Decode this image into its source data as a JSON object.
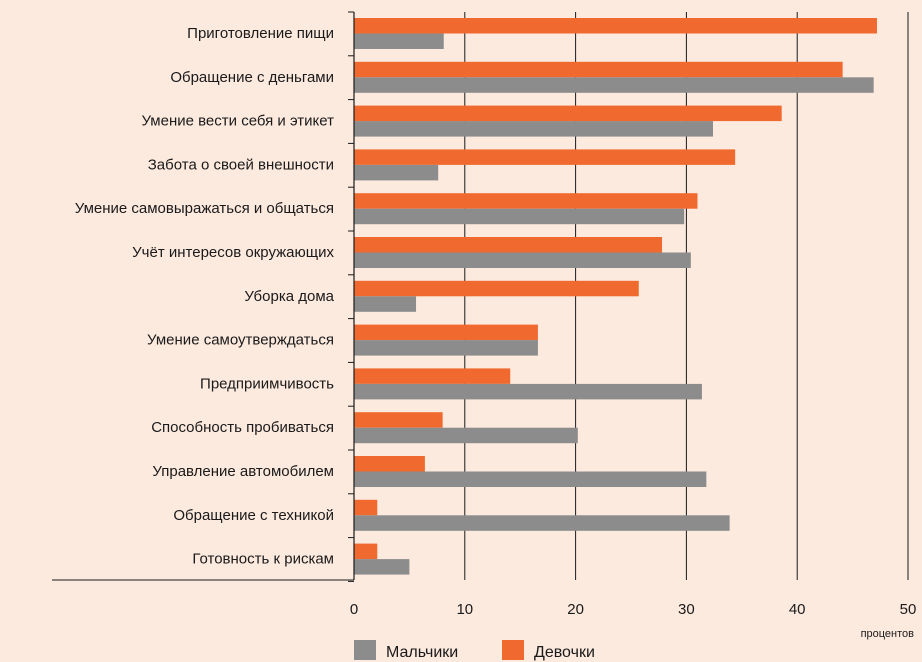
{
  "chart_data": {
    "type": "bar",
    "orientation": "horizontal",
    "categories": [
      "Приготовление пищи",
      "Обращение с деньгами",
      "Умение вести себя и этикет",
      "Забота о своей внешности",
      "Умение самовыражаться и общаться",
      "Учёт интересов окружающих",
      "Уборка дома",
      "Умение самоутверждаться",
      "Предприимчивость",
      "Способность пробиваться",
      "Управление автомобилем",
      "Обращение с техникой",
      "Готовность к рискам"
    ],
    "series": [
      {
        "name": "Девочки",
        "color": "#f06a2f",
        "values": [
          47.2,
          44.1,
          38.6,
          34.4,
          31.0,
          27.8,
          25.7,
          16.6,
          14.1,
          8.0,
          6.4,
          2.1,
          2.1
        ]
      },
      {
        "name": "Мальчики",
        "color": "#8c8c8c",
        "values": [
          8.1,
          46.9,
          32.4,
          7.6,
          29.8,
          30.4,
          5.6,
          16.6,
          31.4,
          20.2,
          31.8,
          33.9,
          5.0
        ]
      }
    ],
    "xlim": [
      0,
      50
    ],
    "xticks": [
      "0",
      "10",
      "20",
      "30",
      "40",
      "50"
    ],
    "xlabel": "процентов",
    "grid": true,
    "legend": {
      "position": "bottom-left",
      "items": [
        {
          "label": "Мальчики",
          "color": "#8c8c8c"
        },
        {
          "label": "Девочки",
          "color": "#f06a2f"
        }
      ]
    }
  }
}
